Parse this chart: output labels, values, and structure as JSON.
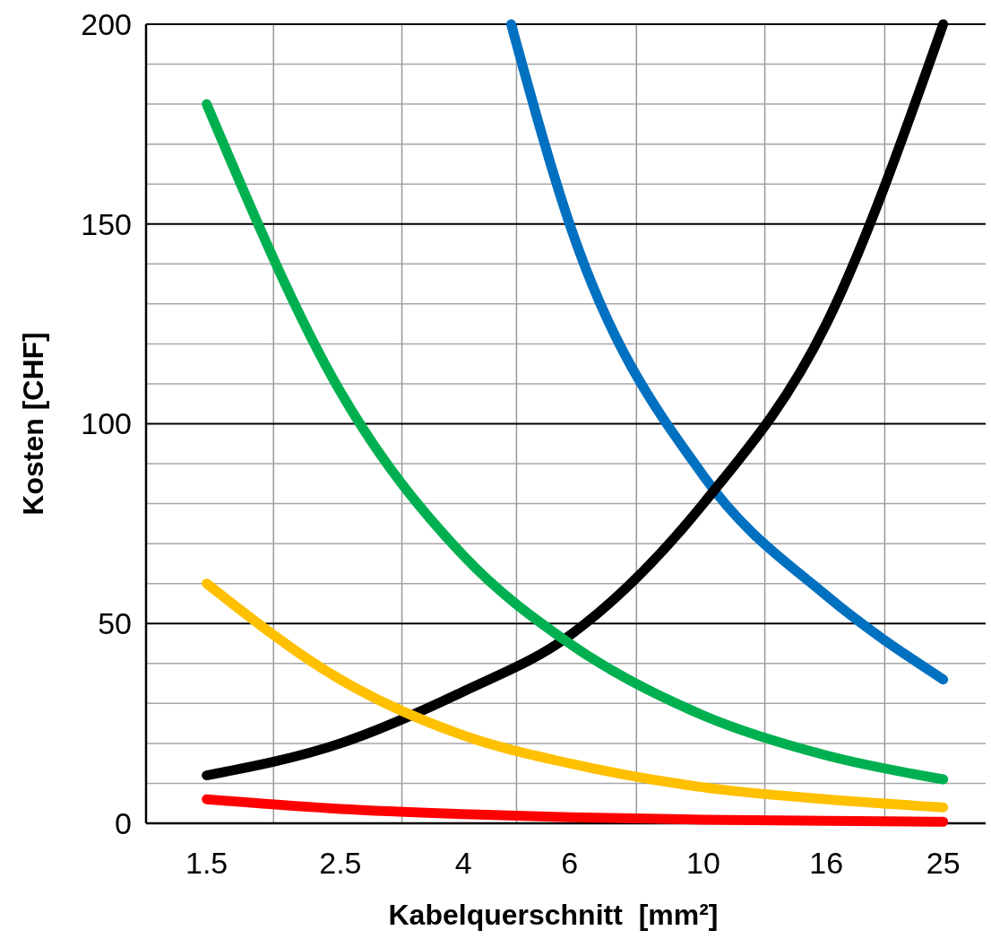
{
  "chart_data": {
    "type": "line",
    "xlabel": "Kabelquerschnitt  [mm²]",
    "ylabel": "Kosten [CHF]",
    "x": [
      1.5,
      2.5,
      4,
      6,
      10,
      16,
      25
    ],
    "log": "x",
    "xlim": [
      1.19,
      29.4
    ],
    "ylim": [
      0,
      200
    ],
    "xticks": [
      1.5,
      2.5,
      4,
      6,
      10,
      16,
      25
    ],
    "yticks": [
      0,
      {
        "value": 10,
        "label": null
      },
      {
        "value": 20,
        "label": null
      },
      {
        "value": 30,
        "label": null
      },
      {
        "value": 40,
        "label": null
      },
      50,
      {
        "value": 60,
        "label": null
      },
      {
        "value": 70,
        "label": null
      },
      {
        "value": 80,
        "label": null
      },
      {
        "value": 90,
        "label": null
      },
      100,
      {
        "value": 110,
        "label": null
      },
      {
        "value": 120,
        "label": null
      },
      {
        "value": 130,
        "label": null
      },
      {
        "value": 140,
        "label": null
      },
      150,
      {
        "value": 160,
        "label": null
      },
      {
        "value": 170,
        "label": null
      },
      {
        "value": 180,
        "label": null
      },
      {
        "value": 190,
        "label": null
      },
      200
    ],
    "grid": true,
    "marker": "none",
    "line_style": "solid",
    "series": [
      {
        "color": "#0070c0",
        "x": [
          4.8,
          6,
          10,
          16,
          25
        ],
        "values": [
          200,
          150,
          87,
          57,
          36
        ]
      },
      {
        "color": "#000000",
        "values": [
          12,
          20,
          33,
          47,
          80,
          125,
          200
        ]
      },
      {
        "color": "#00b050",
        "values": [
          180,
          108,
          67,
          45,
          27,
          17,
          11
        ]
      },
      {
        "color": "#ffc000",
        "values": [
          60,
          36,
          22,
          15,
          9,
          6,
          4
        ]
      },
      {
        "color": "#ff0000",
        "values": [
          6,
          3.6,
          2.3,
          1.5,
          0.9,
          0.6,
          0.4
        ]
      }
    ]
  }
}
